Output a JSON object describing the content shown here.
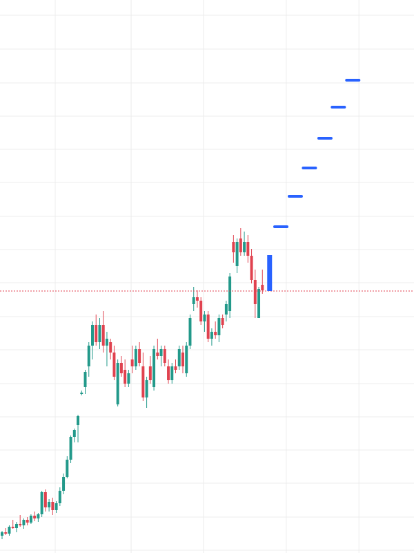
{
  "chart_data": {
    "type": "candlestick",
    "up_color": "#22998a",
    "down_color": "#e0424f",
    "xlim": [
      -0.57,
      113.93
    ],
    "ylim": [
      0,
      800
    ],
    "xgrid": [
      14.7,
      35.7,
      55.7,
      78.6,
      98.7
    ],
    "ygrid": [
      4,
      52,
      101,
      149,
      197,
      245,
      294,
      342,
      391,
      439,
      487,
      536,
      584,
      632,
      680,
      729,
      778
    ],
    "grid_color": "#ececec",
    "open": [
      25,
      30,
      28,
      38,
      36,
      42,
      40,
      48,
      44,
      54,
      50,
      56,
      88,
      66,
      74,
      62,
      72,
      90,
      110,
      135,
      168,
      185,
      230,
      240,
      270,
      300,
      330,
      305,
      330,
      300,
      305,
      290,
      215,
      275,
      265,
      245,
      280,
      270,
      295,
      270,
      225,
      270,
      240,
      290,
      285,
      295,
      270,
      250,
      270,
      270,
      290,
      260,
      300,
      360,
      370,
      365,
      335,
      345,
      310,
      320,
      315,
      340,
      345,
      350,
      450,
      415,
      455,
      435,
      450,
      430,
      395,
      340,
      388
    ],
    "high": [
      32,
      36,
      40,
      48,
      45,
      55,
      50,
      52,
      56,
      60,
      58,
      90,
      92,
      78,
      80,
      75,
      95,
      115,
      140,
      170,
      180,
      200,
      235,
      265,
      305,
      335,
      345,
      340,
      350,
      320,
      310,
      300,
      280,
      285,
      280,
      265,
      300,
      300,
      305,
      290,
      255,
      285,
      300,
      310,
      300,
      300,
      280,
      275,
      280,
      300,
      300,
      305,
      345,
      385,
      380,
      370,
      350,
      350,
      325,
      335,
      345,
      345,
      365,
      405,
      460,
      455,
      470,
      465,
      460,
      440,
      410,
      385,
      410
    ],
    "low": [
      20,
      26,
      25,
      35,
      30,
      38,
      35,
      40,
      42,
      46,
      45,
      52,
      60,
      60,
      55,
      58,
      68,
      85,
      108,
      130,
      160,
      160,
      228,
      230,
      255,
      280,
      300,
      295,
      290,
      270,
      280,
      250,
      212,
      255,
      240,
      240,
      260,
      265,
      270,
      220,
      210,
      245,
      235,
      280,
      270,
      270,
      245,
      245,
      260,
      265,
      260,
      255,
      295,
      350,
      355,
      330,
      320,
      305,
      300,
      310,
      305,
      325,
      335,
      340,
      420,
      405,
      430,
      430,
      420,
      390,
      340,
      340,
      375
    ],
    "close": [
      30,
      28,
      38,
      36,
      42,
      40,
      48,
      44,
      54,
      50,
      56,
      88,
      66,
      74,
      62,
      72,
      90,
      110,
      135,
      168,
      178,
      198,
      232,
      262,
      300,
      330,
      305,
      330,
      300,
      310,
      290,
      255,
      275,
      260,
      245,
      260,
      270,
      295,
      275,
      225,
      250,
      250,
      295,
      285,
      295,
      275,
      250,
      270,
      265,
      295,
      270,
      300,
      340,
      370,
      365,
      335,
      345,
      310,
      320,
      315,
      340,
      330,
      360,
      400,
      435,
      450,
      435,
      450,
      430,
      395,
      360,
      382,
      380
    ],
    "last": {
      "value": 379,
      "color": "#e0424f"
    },
    "highlight": {
      "x": 74.0,
      "low": 379,
      "high": 431,
      "color": "#2962ff"
    },
    "projection": {
      "x": [
        77.1,
        81.1,
        85.0,
        89.3,
        93.0,
        97.0
      ],
      "values": [
        472,
        516,
        557,
        600,
        645,
        684
      ],
      "color": "#2962ff"
    }
  }
}
